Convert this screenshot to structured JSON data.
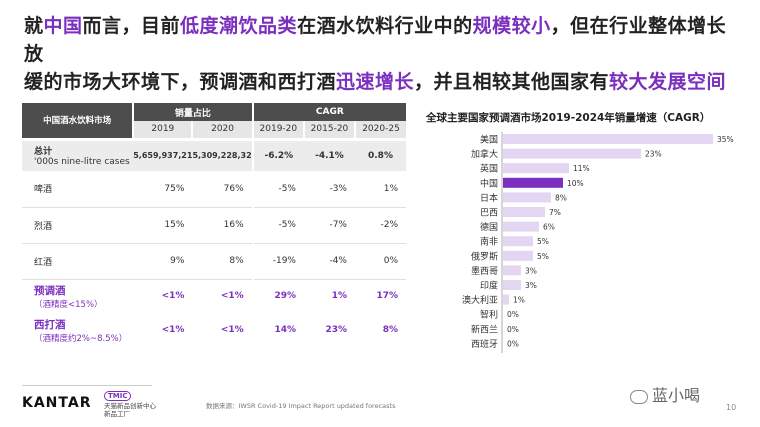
{
  "title": {
    "line1": [
      {
        "t": "就",
        "h": false
      },
      {
        "t": "中国",
        "h": true
      },
      {
        "t": "而言，目前",
        "h": false
      },
      {
        "t": "低度潮饮品类",
        "h": true
      },
      {
        "t": "在酒水饮料行业中的",
        "h": false
      },
      {
        "t": "规模较小",
        "h": true
      },
      {
        "t": "，但在行业整体增长放",
        "h": false
      }
    ],
    "line2": [
      {
        "t": "缓的市场大环境下，预调酒和西打酒",
        "h": false
      },
      {
        "t": "迅速增长",
        "h": true
      },
      {
        "t": "，并且相较其他国家有",
        "h": false
      },
      {
        "t": "较大发展空间",
        "h": true
      }
    ]
  },
  "table": {
    "corner": "中国酒水饮料市场",
    "group1": "销量占比",
    "group2": "CAGR",
    "subheaders": [
      "2019",
      "2020",
      "2019-20",
      "2015-20",
      "2020-25"
    ],
    "total": {
      "label": "总计",
      "sub": "'000s nine-litre cases",
      "v2019": "5,659,937,21",
      "v2020": "5,309,228,32",
      "c1": "-6.2%",
      "c2": "-4.1%",
      "c3": "0.8%"
    },
    "rows": [
      {
        "label": "啤酒",
        "v2019": "75%",
        "v2020": "76%",
        "c1": "-5%",
        "c2": "-3%",
        "c3": "1%"
      },
      {
        "label": "烈酒",
        "v2019": "15%",
        "v2020": "16%",
        "c1": "-5%",
        "c2": "-7%",
        "c3": "-2%"
      },
      {
        "label": "红酒",
        "v2019": "9%",
        "v2020": "8%",
        "c1": "-19%",
        "c2": "-4%",
        "c3": "0%"
      }
    ],
    "highlight_rows": [
      {
        "label": "预调酒",
        "sub": "（酒精度<15%）",
        "v2019": "<1%",
        "v2020": "<1%",
        "c1": "29%",
        "c2": "1%",
        "c3": "17%"
      },
      {
        "label": "西打酒",
        "sub": "（酒精度约2%~8.5%）",
        "v2019": "<1%",
        "v2020": "<1%",
        "c1": "14%",
        "c2": "23%",
        "c3": "8%"
      }
    ]
  },
  "chart_data": {
    "type": "bar",
    "orientation": "horizontal",
    "title": "全球主要国家预调酒市场2019-2024年销量增速（CAGR）",
    "categories": [
      "美国",
      "加拿大",
      "英国",
      "中国",
      "日本",
      "巴西",
      "德国",
      "南非",
      "俄罗斯",
      "墨西哥",
      "印度",
      "澳大利亚",
      "智利",
      "新西兰",
      "西班牙"
    ],
    "values": [
      35,
      23,
      11,
      10,
      8,
      7,
      6,
      5,
      5,
      3,
      3,
      1,
      0,
      0,
      0
    ],
    "labels": [
      "35%",
      "23%",
      "11%",
      "10%",
      "8%",
      "7%",
      "6%",
      "5%",
      "5%",
      "3%",
      "3%",
      "1%",
      "0%",
      "0%",
      "0%"
    ],
    "highlight": "中国",
    "xlim": [
      0,
      35
    ],
    "colors": {
      "bar": "#e4d5f2",
      "highlight": "#7b2fbe"
    }
  },
  "footer": {
    "logo": "KANTAR",
    "tmic_badge": "TMIC",
    "tmic_text": "天猫新品创新中心 新品工厂",
    "source": "数据来源：IWSR Covid-19 Impact Report updated forecasts",
    "watermark": "蓝小喝",
    "page": "10"
  }
}
